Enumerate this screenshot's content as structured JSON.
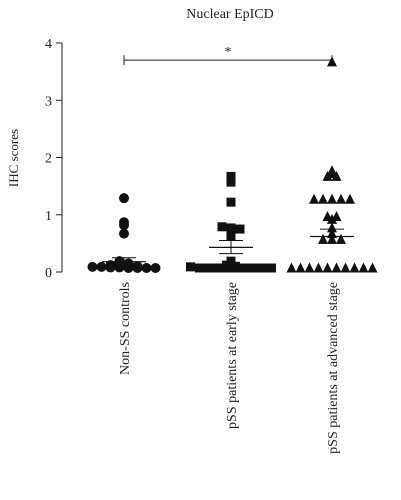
{
  "chart_data": {
    "type": "scatter",
    "title": "Nuclear EpICD",
    "ylabel": "IHC scores",
    "xlabel": "",
    "ylim": [
      0,
      4
    ],
    "yticks": [
      0,
      1,
      2,
      3,
      4
    ],
    "categories": [
      "Non-SS controls",
      "pSS patients at early stage",
      "pSS patients at advanced stage"
    ],
    "series": [
      {
        "marker": "circle",
        "values": [
          1.22,
          0.8,
          0.75,
          0.6,
          0.12,
          0.08,
          0.05,
          0.05,
          0.05,
          0.03,
          0.02,
          0.02,
          0.01,
          0.01,
          0.0,
          0.0,
          0.0,
          0.0
        ],
        "mean": 0.18,
        "sem_upper": 0.25,
        "sem_lower": 0.11
      },
      {
        "marker": "square",
        "values": [
          1.6,
          1.55,
          1.5,
          1.15,
          0.72,
          0.7,
          0.68,
          0.58,
          0.55,
          0.12,
          0.05,
          0.03,
          0.02,
          0.0,
          0.0,
          0.0,
          0.0,
          0.0,
          0.0,
          0.0,
          0.0,
          0.0
        ],
        "mean": 0.43,
        "sem_upper": 0.55,
        "sem_lower": 0.32
      },
      {
        "marker": "triangle",
        "values": [
          3.6,
          1.7,
          1.65,
          1.6,
          1.6,
          1.2,
          1.2,
          1.2,
          1.2,
          1.2,
          0.9,
          0.9,
          0.85,
          0.7,
          0.6,
          0.5,
          0.5,
          0.5,
          0.0,
          0.0,
          0.0,
          0.0,
          0.0,
          0.0,
          0.0,
          0.0,
          0.0,
          0.0
        ],
        "mean": 0.62,
        "sem_upper": 0.75,
        "sem_lower": 0.5
      }
    ],
    "significance": {
      "from": 0,
      "to": 2,
      "label": "*"
    }
  }
}
